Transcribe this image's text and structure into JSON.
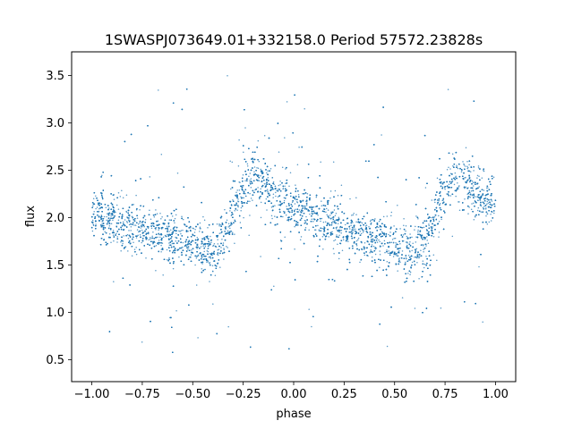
{
  "chart_data": {
    "type": "scatter",
    "title": "1SWASPJ073649.01+332158.0 Period 57572.23828s",
    "xlabel": "phase",
    "ylabel": "flux",
    "xlim": [
      -1.1,
      1.1
    ],
    "ylim": [
      0.27,
      3.75
    ],
    "x_ticks": [
      -1.0,
      -0.75,
      -0.5,
      -0.25,
      0.0,
      0.25,
      0.5,
      0.75,
      1.0
    ],
    "x_tick_labels": [
      "−1.00",
      "−0.75",
      "−0.50",
      "−0.25",
      "0.00",
      "0.25",
      "0.50",
      "0.75",
      "1.00"
    ],
    "y_ticks": [
      0.5,
      1.0,
      1.5,
      2.0,
      2.5,
      3.0,
      3.5
    ],
    "y_tick_labels": [
      "0.5",
      "1.0",
      "1.5",
      "2.0",
      "2.5",
      "3.0",
      "3.5"
    ],
    "grid": false,
    "marker_color": "#1f77b4",
    "series": [
      {
        "x": [
          -1.0,
          -0.9,
          -0.8,
          -0.7,
          -0.6,
          -0.5,
          -0.45,
          -0.4,
          -0.35,
          -0.3,
          -0.25,
          -0.2,
          -0.15,
          -0.1,
          0.0,
          0.1,
          0.2,
          0.3,
          0.4,
          0.5,
          0.55,
          0.6,
          0.65,
          0.7,
          0.75,
          0.8,
          0.85,
          0.9,
          1.0
        ],
        "y": [
          2.05,
          1.98,
          1.9,
          1.83,
          1.77,
          1.72,
          1.68,
          1.65,
          1.78,
          2.05,
          2.3,
          2.42,
          2.38,
          2.25,
          2.12,
          2.02,
          1.93,
          1.85,
          1.77,
          1.72,
          1.68,
          1.64,
          1.75,
          2.05,
          2.32,
          2.45,
          2.4,
          2.28,
          2.1
        ]
      }
    ]
  }
}
